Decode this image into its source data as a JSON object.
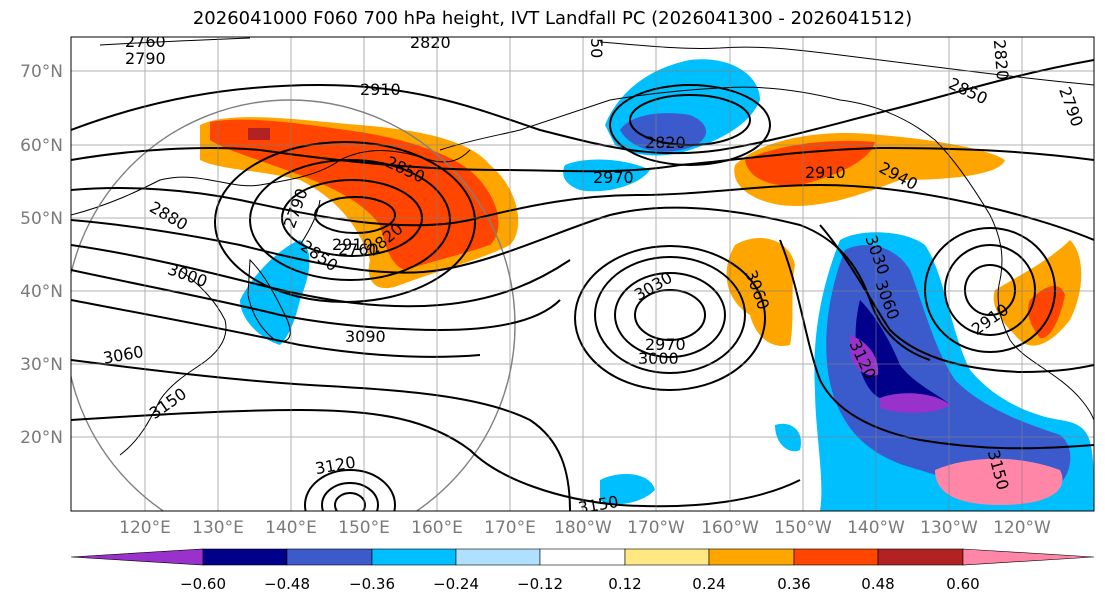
{
  "title": "2026041000 F060 700 hPa height, IVT Landfall PC (2026041300 - 2026041512)",
  "map": {
    "lat_labels": [
      "70°N",
      "60°N",
      "50°N",
      "40°N",
      "30°N",
      "20°N"
    ],
    "lon_labels": [
      "120°E",
      "130°E",
      "140°E",
      "150°E",
      "160°E",
      "170°E",
      "180°W",
      "170°W",
      "160°W",
      "150°W",
      "140°W",
      "130°W",
      "120°W"
    ],
    "contour_labels": [
      "2760",
      "2790",
      "2820",
      "2850",
      "2910",
      "2820",
      "2970",
      "2910",
      "2940",
      "2850",
      "2790",
      "2850",
      "2880",
      "3000",
      "2760",
      "2820",
      "2910",
      "3030",
      "3060",
      "3030",
      "3060",
      "2970",
      "3000",
      "3090",
      "3120",
      "3060",
      "3150",
      "3120",
      "3150",
      "3150",
      "50",
      "2820",
      "2790",
      "2910"
    ]
  },
  "colorbar": {
    "colors": [
      "#9932cc",
      "#00008b",
      "#3b5bcd",
      "#00bfff",
      "#b0e0ff",
      "#ffffff",
      "#ffe882",
      "#ffa500",
      "#ff4500",
      "#b22222",
      "#ff86a6"
    ],
    "ticks": [
      "−0.60",
      "−0.48",
      "−0.36",
      "−0.24",
      "−0.12",
      "0.12",
      "0.24",
      "0.36",
      "0.48",
      "0.60"
    ]
  }
}
